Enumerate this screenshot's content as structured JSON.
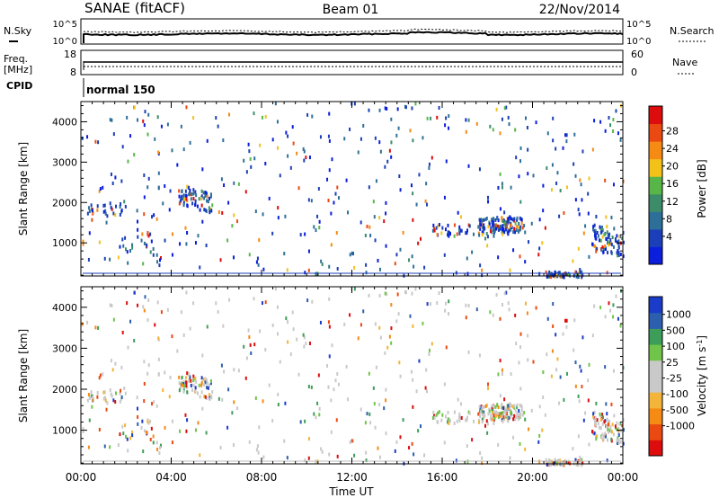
{
  "header": {
    "station": "SANAE (fitACF)",
    "beam": "Beam 01",
    "date": "22/Nov/2014"
  },
  "noise_panel": {
    "left_label": "N.Sky",
    "right_label": "N.Search",
    "left_ticks": [
      "10^5",
      "10^0"
    ],
    "right_ticks": [
      "10^5",
      "10^0"
    ]
  },
  "freq_panel": {
    "left_label_1": "Freq.",
    "left_label_2": "[MHz]",
    "left_ticks": [
      "18",
      "8"
    ],
    "right_label": "Nave",
    "right_ticks": [
      "60",
      "0"
    ]
  },
  "cpid_panel": {
    "label": "CPID",
    "mode": "normal 150"
  },
  "colors": {
    "power": [
      "#0a1edc",
      "#1b3fb8",
      "#2e6f9a",
      "#3c8c6a",
      "#58b648",
      "#f2c21b",
      "#f58a14",
      "#ea4a12",
      "#dd0d0d"
    ],
    "velocity": [
      "#dd0d0d",
      "#ea4a12",
      "#f58a14",
      "#f3b43a",
      "#c9c9c9",
      "#c9c9c9",
      "#70c449",
      "#3c9e58",
      "#2d5fae",
      "#1a3cc8"
    ]
  },
  "chart_data": [
    {
      "type": "heatmap",
      "name": "power",
      "ylabel": "Slant Range [km]",
      "xlabel": "",
      "xlim": [
        0,
        24
      ],
      "ylim": [
        180,
        4500
      ],
      "xticks": [
        "00:00",
        "04:00",
        "08:00",
        "12:00",
        "16:00",
        "20:00",
        "00:00"
      ],
      "yticks": [
        1000,
        2000,
        3000,
        4000
      ],
      "colorbar": {
        "label": "Power [dB]",
        "ticks": [
          "28",
          "24",
          "20",
          "16",
          "12",
          "8",
          "4"
        ],
        "range": [
          0,
          30
        ]
      }
    },
    {
      "type": "heatmap",
      "name": "velocity",
      "ylabel": "Slant Range [km]",
      "xlabel": "Time UT",
      "xlim": [
        0,
        24
      ],
      "ylim": [
        180,
        4500
      ],
      "xticks": [
        "00:00",
        "04:00",
        "08:00",
        "12:00",
        "16:00",
        "20:00",
        "00:00"
      ],
      "yticks": [
        1000,
        2000,
        3000,
        4000
      ],
      "colorbar": {
        "label": "Velocity [m s",
        "label_sup": "-1",
        "label_end": "]",
        "ticks": [
          "1000",
          "500",
          "100",
          "25",
          "-25",
          "-100",
          "-500",
          "-1000"
        ]
      }
    }
  ]
}
